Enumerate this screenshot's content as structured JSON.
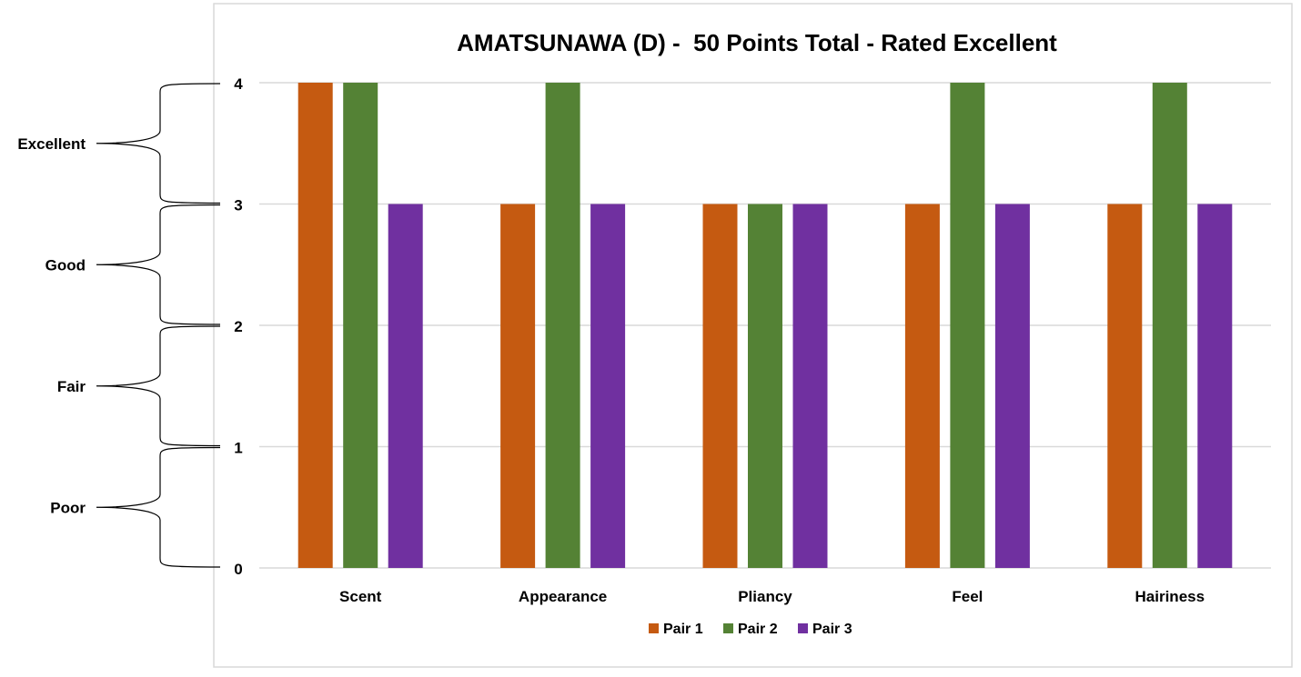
{
  "chart_data": {
    "type": "bar",
    "title": "AMATSUNAWA (D) -  50 Points Total - Rated Excellent",
    "xlabel": "",
    "ylabel": "",
    "categories": [
      "Scent",
      "Appearance",
      "Pliancy",
      "Feel",
      "Hairiness"
    ],
    "series": [
      {
        "name": "Pair 1",
        "color": "#C55A11",
        "values": [
          4,
          3,
          3,
          3,
          3
        ]
      },
      {
        "name": "Pair 2",
        "color": "#548235",
        "values": [
          4,
          4,
          3,
          4,
          4
        ]
      },
      {
        "name": "Pair 3",
        "color": "#7030A0",
        "values": [
          3,
          3,
          3,
          3,
          3
        ]
      }
    ],
    "ylim": [
      0,
      4
    ],
    "yticks": [
      "0",
      "1",
      "2",
      "3",
      "4"
    ],
    "grid": true,
    "legend_position": "bottom",
    "rating_bands": [
      {
        "label": "Excellent",
        "from": 3,
        "to": 4
      },
      {
        "label": "Good",
        "from": 2,
        "to": 3
      },
      {
        "label": "Fair",
        "from": 1,
        "to": 2
      },
      {
        "label": "Poor",
        "from": 0,
        "to": 1
      }
    ],
    "colors": {
      "gridline": "#D9D9D9",
      "frame": "#D9D9D9",
      "text": "#000000"
    }
  }
}
